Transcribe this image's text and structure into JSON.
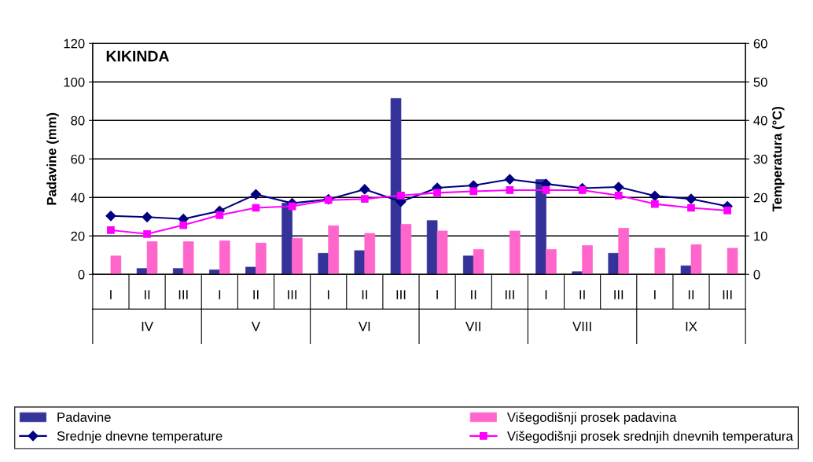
{
  "chart_data": {
    "type": "bar",
    "title": "KIKINDA",
    "ylabel": "Padavine (mm)",
    "y2label": "Temperatura (°C)",
    "categories": [
      "I",
      "II",
      "III",
      "I",
      "II",
      "III",
      "I",
      "II",
      "III",
      "I",
      "II",
      "III",
      "I",
      "II",
      "III",
      "I",
      "II",
      "III"
    ],
    "annotations": [
      "IV",
      "V",
      "VI",
      "VII",
      "VIII",
      "IX"
    ],
    "series": [
      {
        "name": "Padavine",
        "color": "#333399",
        "values": [
          null,
          3.1,
          3.1,
          2.4,
          3.8,
          37,
          11,
          12.4,
          91.4,
          28,
          9.6,
          null,
          49.3,
          1.4,
          11,
          null,
          4.5,
          null
        ]
      },
      {
        "name": "Višegodišnji prosek padavina",
        "color": "#ff66cc",
        "values": [
          9.6,
          17,
          17,
          17.5,
          16.3,
          18.8,
          25.3,
          21.3,
          26,
          22.6,
          13,
          22.6,
          13,
          15,
          24,
          13.6,
          15.5,
          13.6
        ]
      },
      {
        "name": "Srednje dnevne temperature",
        "type": "line",
        "axis": "y2",
        "marker": "diamond",
        "color": "#000080",
        "values": [
          15.2,
          14.9,
          14.4,
          16.5,
          20.8,
          18.5,
          19.5,
          22.1,
          18.9,
          22.5,
          23.1,
          24.7,
          23.5,
          22.4,
          22.7,
          20.4,
          19.6,
          17.7
        ]
      },
      {
        "name": "Višegodišnji prosek srednjih dnevnih temperatura",
        "type": "line",
        "axis": "y2",
        "marker": "square",
        "color": "#ff00ff",
        "values": [
          11.5,
          10.5,
          12.8,
          15.4,
          17.3,
          17.7,
          19.3,
          19.6,
          20.5,
          21.2,
          21.6,
          21.9,
          21.9,
          21.9,
          20.5,
          18.3,
          17.3,
          16.6
        ]
      }
    ],
    "ylim": [
      0,
      120
    ],
    "yticks": [
      0,
      20,
      40,
      60,
      80,
      100,
      120
    ],
    "y2lim": [
      0,
      60
    ],
    "y2ticks": [
      0,
      10,
      20,
      30,
      40,
      50,
      60
    ],
    "grid": "y",
    "legend": "bottom"
  }
}
